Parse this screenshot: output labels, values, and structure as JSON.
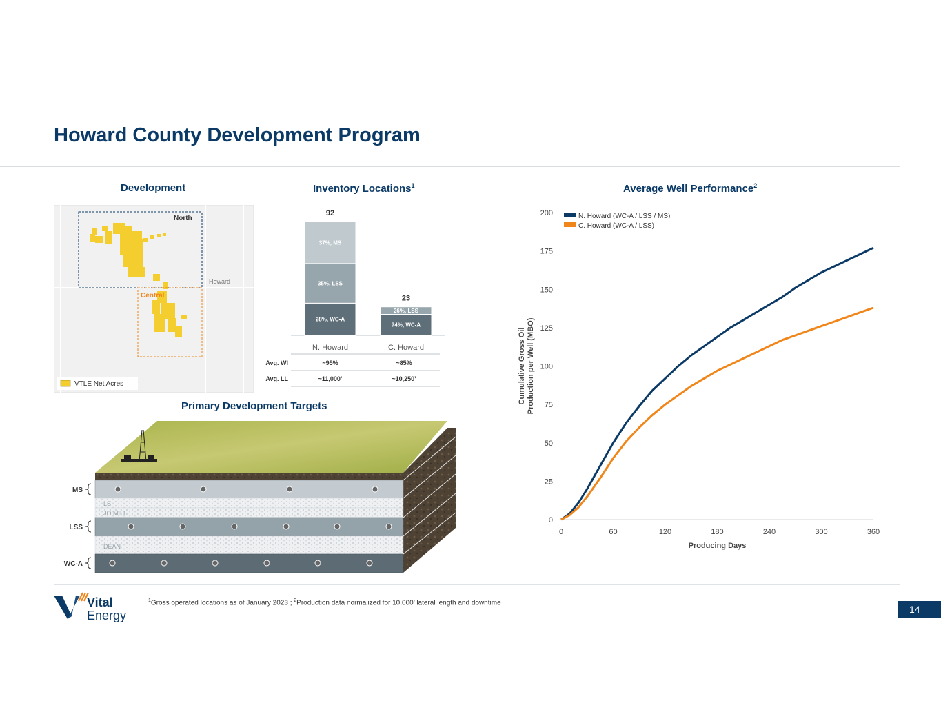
{
  "title": "Howard County Development Program",
  "development": {
    "title": "Development",
    "map_labels": {
      "north": "North",
      "central": "Central",
      "county": "Howard"
    },
    "legend_label": "VTLE Net Acres"
  },
  "inventory": {
    "title": "Inventory Locations",
    "title_sup": "1",
    "chart_data": {
      "type": "bar",
      "stacked": true,
      "categories": [
        "N. Howard",
        "C. Howard"
      ],
      "totals": [
        92,
        23
      ],
      "series": [
        {
          "name": "WC-A",
          "values": [
            26,
            17
          ],
          "labels": [
            "28%, WC-A",
            "74%, WC-A"
          ],
          "color": "#5f6f79"
        },
        {
          "name": "LSS",
          "values": [
            32,
            6
          ],
          "labels": [
            "35%, LSS",
            "26%, LSS"
          ],
          "color": "#97a6ad"
        },
        {
          "name": "MS",
          "values": [
            34,
            0
          ],
          "labels": [
            "37%, MS",
            ""
          ],
          "color": "#bfc9ce"
        }
      ]
    },
    "table": {
      "rows": [
        {
          "label": "Avg. WI",
          "values": [
            "~95%",
            "~85%"
          ]
        },
        {
          "label": "Avg. LL",
          "values": [
            "~11,000’",
            "~10,250’"
          ]
        }
      ]
    }
  },
  "targets": {
    "title": "Primary Development Targets",
    "brackets": [
      "MS",
      "LSS",
      "WC-A"
    ],
    "layers": [
      "LS",
      "JO MILL",
      "DEAN"
    ]
  },
  "performance": {
    "title": "Average Well Performance",
    "title_sup": "2",
    "chart_data": {
      "type": "line",
      "xlabel": "Producing Days",
      "ylabel_lines": [
        "Cumulative Gross Oil",
        "Production per Well (MBO)"
      ],
      "xlim": [
        0,
        360
      ],
      "ylim": [
        0,
        200
      ],
      "xticks": [
        0,
        60,
        120,
        180,
        240,
        300,
        360
      ],
      "yticks": [
        0,
        25,
        50,
        75,
        100,
        125,
        150,
        175,
        200
      ],
      "legend_position": "top-left",
      "grid": false,
      "series": [
        {
          "name": "N. Howard (WC-A / LSS / MS)",
          "color": "#0b3a66",
          "x": [
            0,
            10,
            20,
            30,
            45,
            60,
            75,
            90,
            105,
            120,
            135,
            150,
            165,
            180,
            195,
            210,
            225,
            240,
            255,
            270,
            285,
            300,
            315,
            330,
            345,
            360
          ],
          "y": [
            0,
            4,
            11,
            20,
            35,
            50,
            63,
            74,
            84,
            92,
            100,
            107,
            113,
            119,
            125,
            130,
            135,
            140,
            145,
            151,
            156,
            161,
            165,
            169,
            173,
            177
          ]
        },
        {
          "name": "C. Howard (WC-A / LSS)",
          "color": "#f0861a",
          "x": [
            0,
            10,
            20,
            30,
            45,
            60,
            75,
            90,
            105,
            120,
            135,
            150,
            165,
            180,
            195,
            210,
            225,
            240,
            255,
            270,
            285,
            300,
            315,
            330,
            345,
            360
          ],
          "y": [
            0,
            3,
            8,
            15,
            27,
            40,
            51,
            60,
            68,
            75,
            81,
            87,
            92,
            97,
            101,
            105,
            109,
            113,
            117,
            120,
            123,
            126,
            129,
            132,
            135,
            138
          ]
        }
      ]
    }
  },
  "footnote": {
    "sup1": "1",
    "text1": "Gross operated locations as of January 2023 ; ",
    "sup2": "2",
    "text2": "Production data normalized for 10,000’ lateral length and downtime"
  },
  "page_number": "14",
  "logo": {
    "line1": "Vital",
    "line2": "Energy"
  }
}
